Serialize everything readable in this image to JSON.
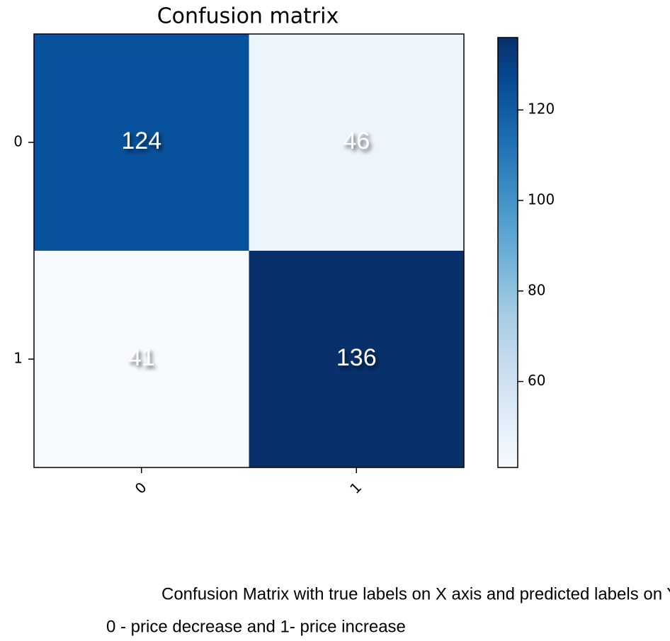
{
  "chart_data": {
    "type": "heatmap",
    "title": "Confusion matrix",
    "x_categories": [
      "0",
      "1"
    ],
    "y_categories": [
      "0",
      "1"
    ],
    "values": [
      [
        124,
        46
      ],
      [
        41,
        136
      ]
    ],
    "colormap": "Blues",
    "clim": [
      41,
      136
    ],
    "cticks": [
      60,
      80,
      100,
      120
    ],
    "notes": [
      "Confusion Matrix with true labels on X axis and predicted labels on Y axis",
      "0 - price decrease and 1- price increase"
    ]
  }
}
